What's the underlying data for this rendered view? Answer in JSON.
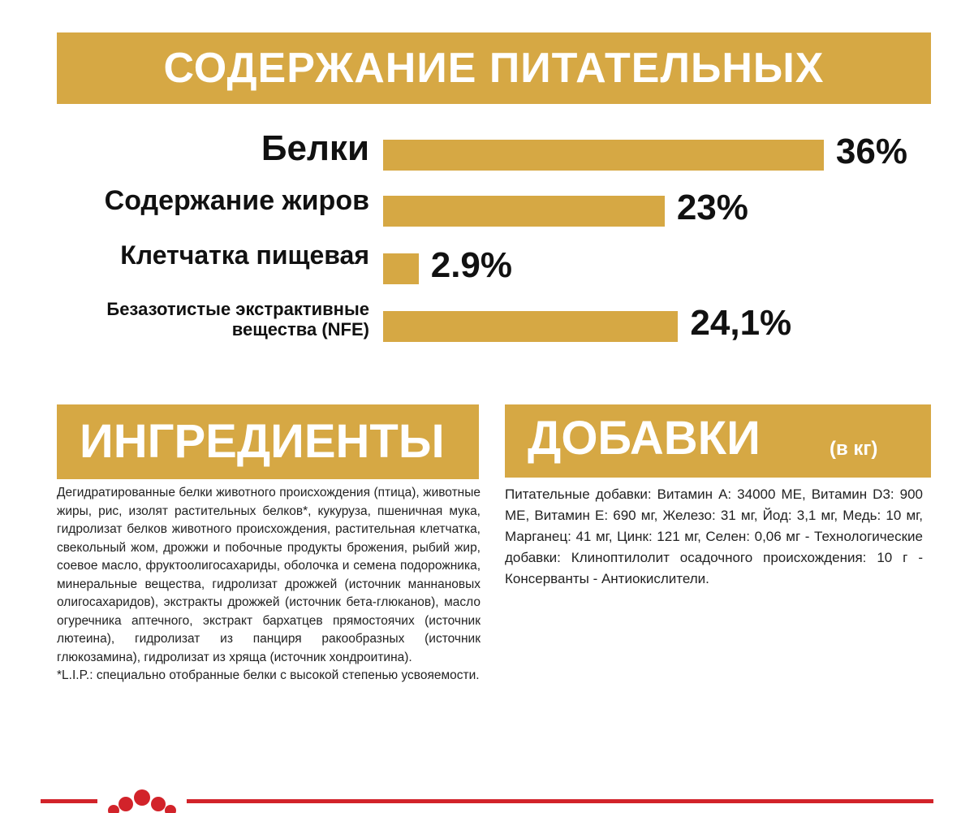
{
  "header": {
    "title": "СОДЕРЖАНИЕ ПИТАТЕЛЬНЫХ ВЕЩЕСТВ"
  },
  "chart_data": {
    "type": "bar",
    "orientation": "horizontal",
    "categories": [
      "Белки",
      "Содержание жиров",
      "Клетчатка пищевая",
      "Безазотистые экстрактивные вещества (NFE)"
    ],
    "values": [
      36,
      23,
      2.9,
      24.1
    ],
    "value_labels": [
      "36%",
      "23%",
      "2.9%",
      "24,1%"
    ],
    "color": "#d6a844"
  },
  "ingredients": {
    "title": "ИНГРЕДИЕНТЫ",
    "text": "Дегидратированные белки животного происхождения (птица), животные жиры, рис, изолят растительных белков*, кукуруза, пшеничная мука, гидролизат белков животного происхождения, растительная клетчатка, свекольный жом, дрожжи и побочные продукты брожения, рыбий жир, соевое масло, фруктоолигосахариды, оболочка и семена подорожника, минеральные вещества, гидролизат дрожжей (источник маннановых олигосахаридов), экстракты дрожжей (источник бета-глюканов), масло огуречника аптечного, экстракт бархатцев прямостоячих (источник лютеина), гидролизат из панциря ракообразных (источник глюкозамина), гидролизат из хряща (источник хондроитина).",
    "note": "*L.I.P.: специально отобранные белки с высокой степенью усвояемости."
  },
  "additives": {
    "title": "ДОБАВКИ",
    "unit": "(в кг)",
    "text": "Питательные добавки: Витамин A: 34000 МЕ, Витамин D3: 900 МЕ, Витамин E: 690 мг, Железо: 31 мг, Йод: 3,1 мг, Медь: 10 мг, Марганец: 41 мг, Цинк: 121 мг, Селен: 0,06 мг - Технологические добавки: Клиноптилолит осадочного происхождения: 10 г - Консерванты - Антиокислители."
  }
}
